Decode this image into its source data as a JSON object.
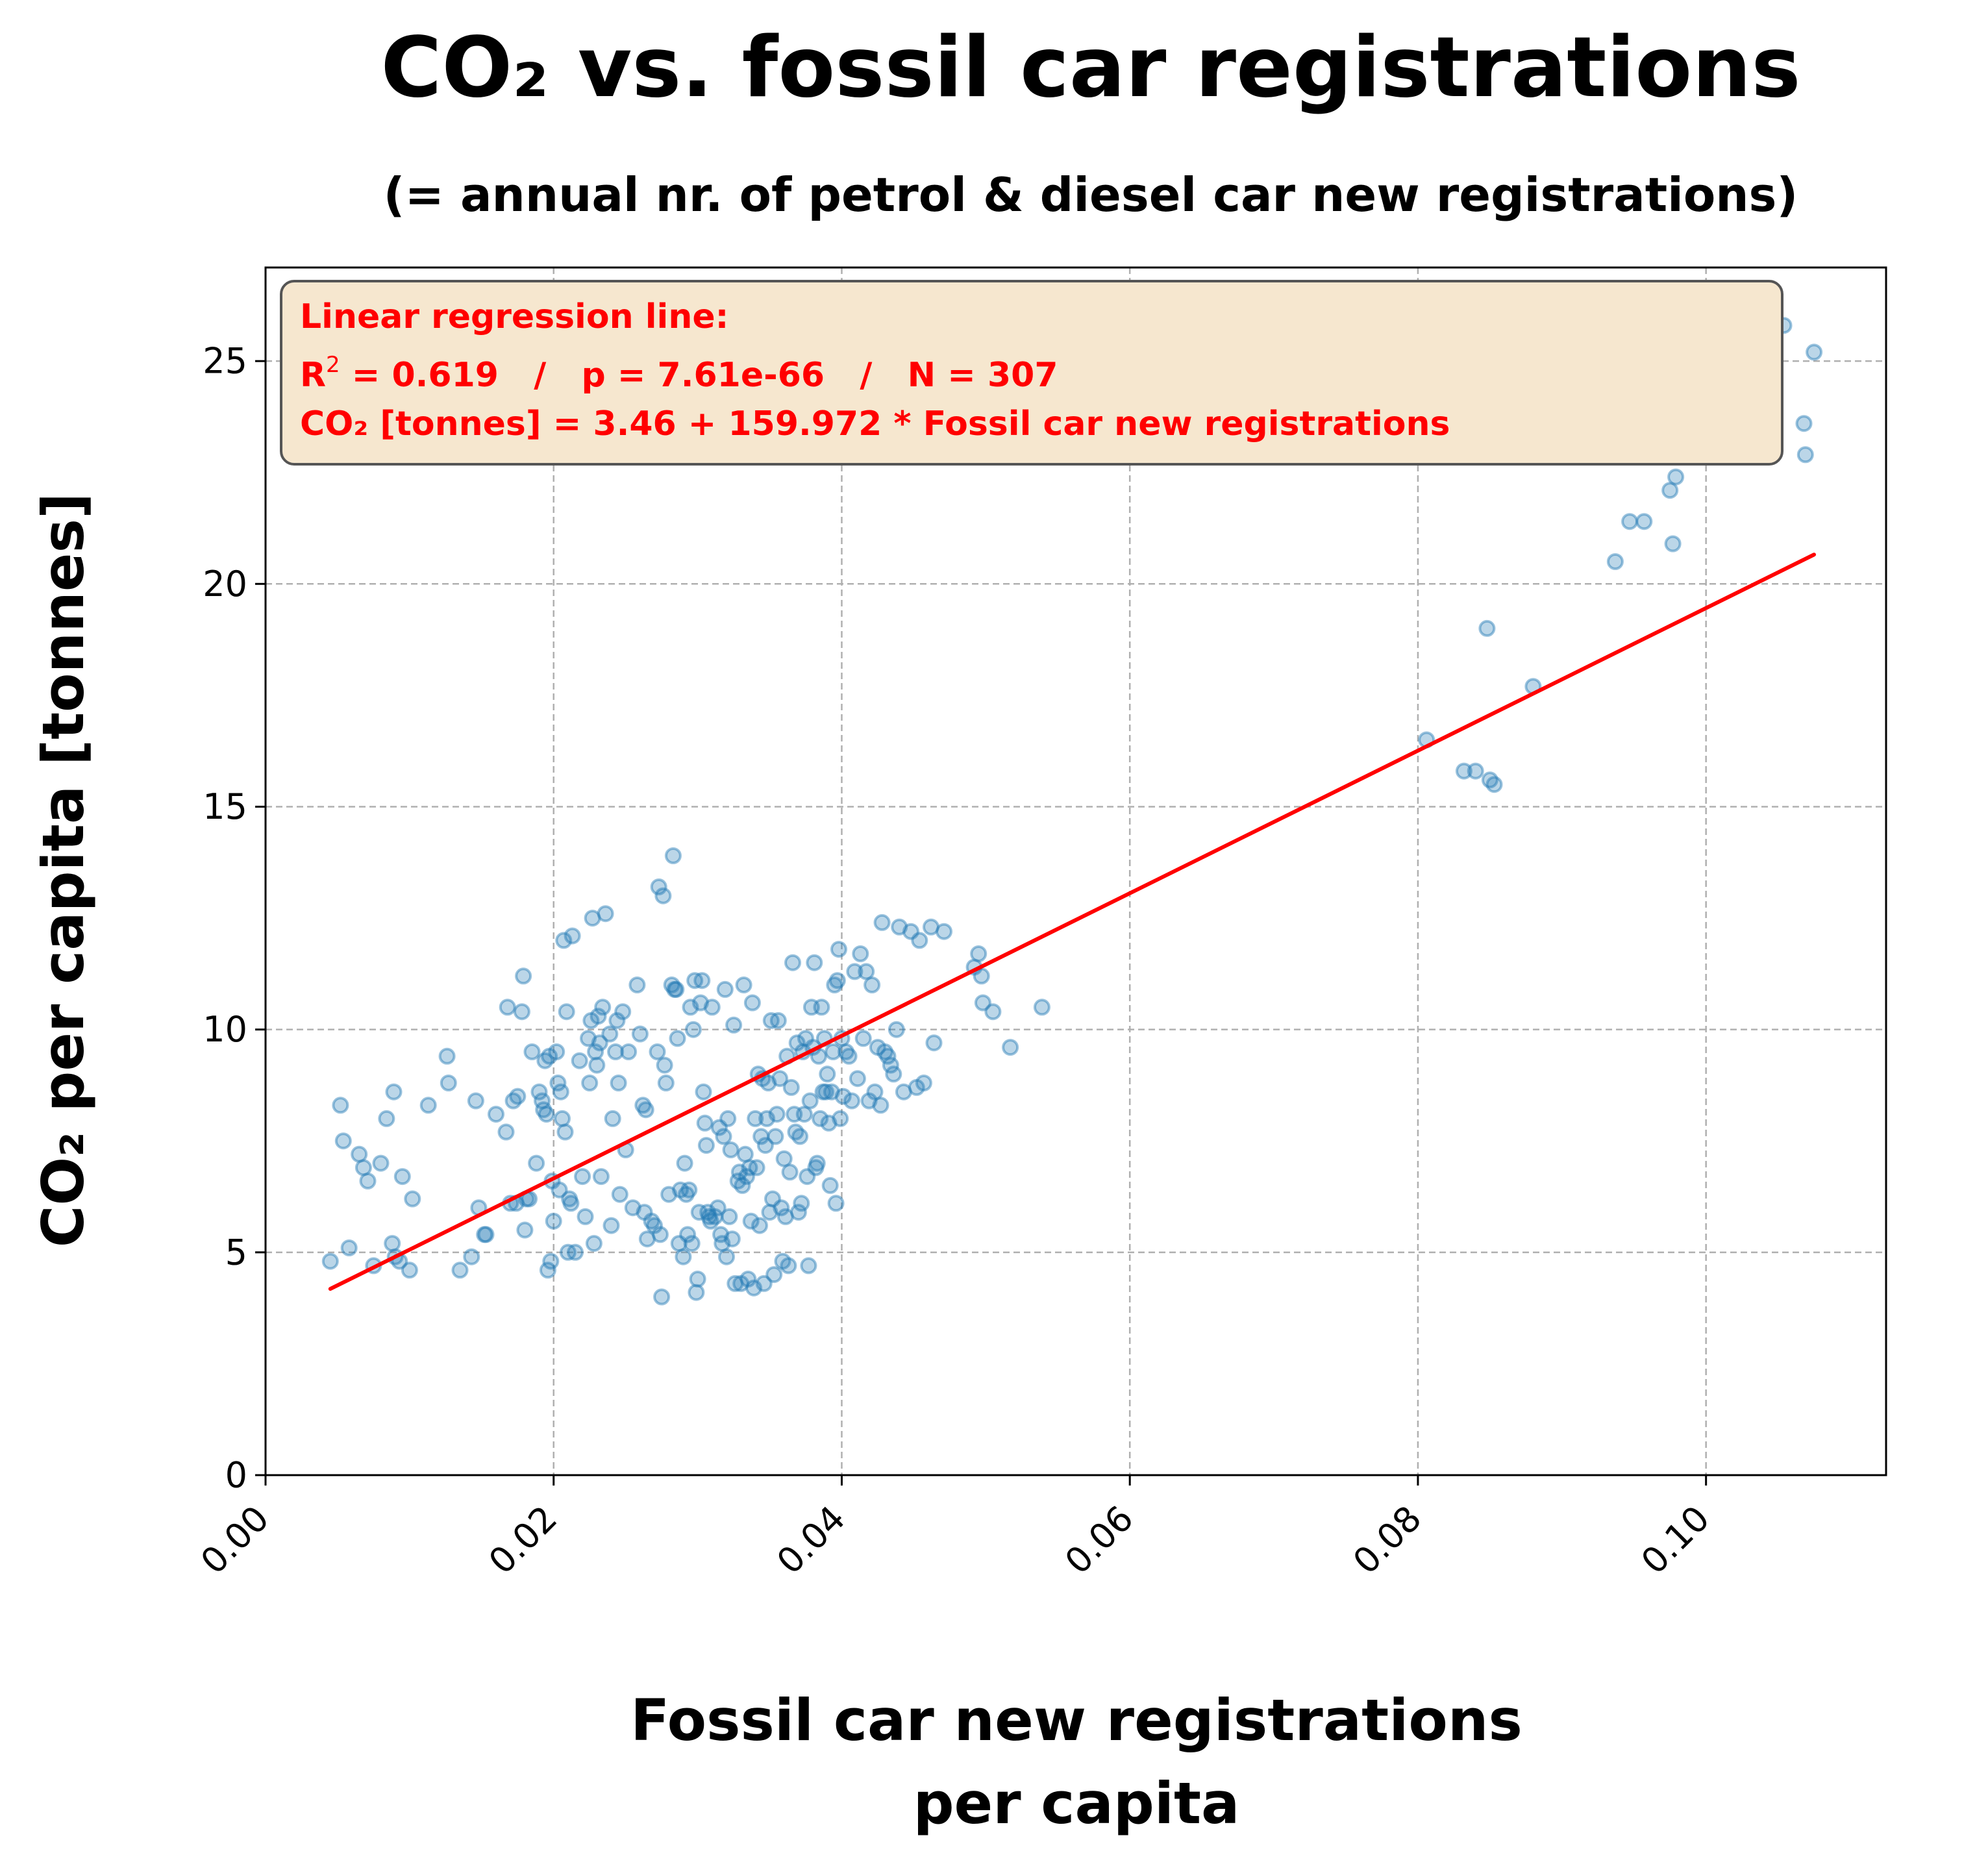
{
  "colors": {
    "point_fill": "#1f77b4",
    "regression_line": "#ff0000",
    "annotation_box_fill": "#f6e7cf",
    "annotation_box_edge": "#555555",
    "grid": "#b0b0b0"
  },
  "chart_data": {
    "type": "scatter",
    "title": "CO₂ vs. fossil car registrations",
    "subtitle": "(= annual nr. of petrol & diesel car new registrations)",
    "xlabel_line1": "Fossil car new registrations",
    "xlabel_line2": "per capita",
    "ylabel": "CO₂ per capita [tonnes]",
    "xlim": [
      0.0,
      0.1125
    ],
    "ylim": [
      0,
      27.1
    ],
    "x_ticks": [
      0.0,
      0.02,
      0.04,
      0.06,
      0.08,
      0.1
    ],
    "x_tick_labels": [
      "0.00",
      "0.02",
      "0.04",
      "0.06",
      "0.08",
      "0.10"
    ],
    "y_ticks": [
      0,
      5,
      10,
      15,
      20,
      25
    ],
    "y_tick_labels": [
      "0",
      "5",
      "10",
      "15",
      "20",
      "25"
    ],
    "grid": true,
    "regression": {
      "intercept": 3.46,
      "slope": 159.972,
      "x_range": [
        0.0045,
        0.1075
      ]
    },
    "annotation": {
      "line1": "Linear regression line:",
      "line2_r": "R",
      "line2_sup": "2",
      "line2_rest": " = 0.619   /   p = 7.61e-66   /   N = 307",
      "line3": "CO₂ [tonnes] = 3.46 + 159.972 * Fossil car new registrations",
      "placement": "top-left"
    },
    "points": [
      [
        0.0045,
        4.8
      ],
      [
        0.0052,
        8.3
      ],
      [
        0.0054,
        7.5
      ],
      [
        0.0058,
        5.1
      ],
      [
        0.0065,
        7.2
      ],
      [
        0.0068,
        6.9
      ],
      [
        0.0071,
        6.6
      ],
      [
        0.0075,
        4.7
      ],
      [
        0.008,
        7.0
      ],
      [
        0.0084,
        8.0
      ],
      [
        0.0088,
        5.2
      ],
      [
        0.0089,
        8.6
      ],
      [
        0.009,
        4.9
      ],
      [
        0.0093,
        4.8
      ],
      [
        0.0095,
        6.7
      ],
      [
        0.01,
        4.6
      ],
      [
        0.0102,
        6.2
      ],
      [
        0.0113,
        8.3
      ],
      [
        0.0126,
        9.4
      ],
      [
        0.0127,
        8.8
      ],
      [
        0.0135,
        4.6
      ],
      [
        0.0143,
        4.9
      ],
      [
        0.0146,
        8.4
      ],
      [
        0.0148,
        6.0
      ],
      [
        0.0152,
        5.4
      ],
      [
        0.0153,
        5.4
      ],
      [
        0.016,
        8.1
      ],
      [
        0.0167,
        7.7
      ],
      [
        0.0168,
        10.5
      ],
      [
        0.017,
        6.1
      ],
      [
        0.0172,
        8.4
      ],
      [
        0.0174,
        6.1
      ],
      [
        0.0175,
        8.5
      ],
      [
        0.0178,
        10.4
      ],
      [
        0.0179,
        11.2
      ],
      [
        0.018,
        5.5
      ],
      [
        0.0181,
        6.2
      ],
      [
        0.0183,
        6.2
      ],
      [
        0.0185,
        9.5
      ],
      [
        0.0188,
        7.0
      ],
      [
        0.019,
        8.6
      ],
      [
        0.0192,
        8.4
      ],
      [
        0.0193,
        8.2
      ],
      [
        0.0194,
        9.3
      ],
      [
        0.0195,
        8.1
      ],
      [
        0.0196,
        4.6
      ],
      [
        0.0197,
        9.4
      ],
      [
        0.0198,
        4.8
      ],
      [
        0.0199,
        6.6
      ],
      [
        0.02,
        5.7
      ],
      [
        0.0202,
        9.5
      ],
      [
        0.0203,
        8.8
      ],
      [
        0.0204,
        6.4
      ],
      [
        0.0205,
        8.6
      ],
      [
        0.0206,
        8.0
      ],
      [
        0.0207,
        12.0
      ],
      [
        0.0208,
        7.7
      ],
      [
        0.0209,
        10.4
      ],
      [
        0.021,
        5.0
      ],
      [
        0.0211,
        6.2
      ],
      [
        0.0212,
        6.1
      ],
      [
        0.0213,
        12.1
      ],
      [
        0.0215,
        5.0
      ],
      [
        0.0218,
        9.3
      ],
      [
        0.022,
        6.7
      ],
      [
        0.0222,
        5.8
      ],
      [
        0.0224,
        9.8
      ],
      [
        0.0225,
        8.8
      ],
      [
        0.0226,
        10.2
      ],
      [
        0.0227,
        12.5
      ],
      [
        0.0228,
        5.2
      ],
      [
        0.0229,
        9.5
      ],
      [
        0.023,
        9.2
      ],
      [
        0.0231,
        10.3
      ],
      [
        0.0232,
        9.7
      ],
      [
        0.0233,
        6.7
      ],
      [
        0.0234,
        10.5
      ],
      [
        0.0236,
        12.6
      ],
      [
        0.0239,
        9.9
      ],
      [
        0.024,
        5.6
      ],
      [
        0.0241,
        8.0
      ],
      [
        0.0243,
        9.5
      ],
      [
        0.0244,
        10.2
      ],
      [
        0.0245,
        8.8
      ],
      [
        0.0246,
        6.3
      ],
      [
        0.0248,
        10.4
      ],
      [
        0.025,
        7.3
      ],
      [
        0.0252,
        9.5
      ],
      [
        0.0255,
        6.0
      ],
      [
        0.0258,
        11.0
      ],
      [
        0.026,
        9.9
      ],
      [
        0.0262,
        8.3
      ],
      [
        0.0263,
        5.9
      ],
      [
        0.0264,
        8.2
      ],
      [
        0.0265,
        5.3
      ],
      [
        0.0268,
        5.7
      ],
      [
        0.027,
        5.6
      ],
      [
        0.0272,
        9.5
      ],
      [
        0.0273,
        13.2
      ],
      [
        0.0274,
        5.4
      ],
      [
        0.0275,
        4.0
      ],
      [
        0.0276,
        13.0
      ],
      [
        0.0277,
        9.2
      ],
      [
        0.0278,
        8.8
      ],
      [
        0.028,
        6.3
      ],
      [
        0.0282,
        11.0
      ],
      [
        0.0283,
        13.9
      ],
      [
        0.0284,
        10.9
      ],
      [
        0.0285,
        10.9
      ],
      [
        0.0286,
        9.8
      ],
      [
        0.0287,
        5.2
      ],
      [
        0.0288,
        6.4
      ],
      [
        0.029,
        4.9
      ],
      [
        0.0291,
        7.0
      ],
      [
        0.0292,
        6.3
      ],
      [
        0.0293,
        5.4
      ],
      [
        0.0294,
        6.4
      ],
      [
        0.0295,
        10.5
      ],
      [
        0.0296,
        5.2
      ],
      [
        0.0297,
        10.0
      ],
      [
        0.0298,
        11.1
      ],
      [
        0.0299,
        4.1
      ],
      [
        0.03,
        4.4
      ],
      [
        0.0301,
        5.9
      ],
      [
        0.0302,
        10.6
      ],
      [
        0.0303,
        11.1
      ],
      [
        0.0304,
        8.6
      ],
      [
        0.0305,
        7.9
      ],
      [
        0.0306,
        7.4
      ],
      [
        0.0307,
        5.9
      ],
      [
        0.0308,
        5.8
      ],
      [
        0.0309,
        5.7
      ],
      [
        0.031,
        10.5
      ],
      [
        0.0312,
        5.8
      ],
      [
        0.0314,
        6.0
      ],
      [
        0.0315,
        7.8
      ],
      [
        0.0316,
        5.4
      ],
      [
        0.0317,
        5.2
      ],
      [
        0.0318,
        7.6
      ],
      [
        0.0319,
        10.9
      ],
      [
        0.032,
        4.9
      ],
      [
        0.0321,
        8.0
      ],
      [
        0.0322,
        5.8
      ],
      [
        0.0323,
        7.3
      ],
      [
        0.0324,
        5.3
      ],
      [
        0.0325,
        10.1
      ],
      [
        0.0326,
        4.3
      ],
      [
        0.0328,
        6.6
      ],
      [
        0.0329,
        6.8
      ],
      [
        0.033,
        4.3
      ],
      [
        0.0331,
        6.5
      ],
      [
        0.0332,
        11.0
      ],
      [
        0.0333,
        7.2
      ],
      [
        0.0334,
        6.7
      ],
      [
        0.0335,
        4.4
      ],
      [
        0.0336,
        6.9
      ],
      [
        0.0337,
        5.7
      ],
      [
        0.0338,
        10.6
      ],
      [
        0.0339,
        4.2
      ],
      [
        0.034,
        8.0
      ],
      [
        0.0341,
        6.9
      ],
      [
        0.0342,
        9.0
      ],
      [
        0.0343,
        5.6
      ],
      [
        0.0344,
        7.6
      ],
      [
        0.0345,
        8.9
      ],
      [
        0.0346,
        4.3
      ],
      [
        0.0347,
        7.4
      ],
      [
        0.0348,
        8.0
      ],
      [
        0.0349,
        8.8
      ],
      [
        0.035,
        5.9
      ],
      [
        0.0351,
        10.2
      ],
      [
        0.0352,
        6.2
      ],
      [
        0.0353,
        4.5
      ],
      [
        0.0354,
        7.6
      ],
      [
        0.0355,
        8.1
      ],
      [
        0.0356,
        10.2
      ],
      [
        0.0357,
        8.9
      ],
      [
        0.0358,
        6.0
      ],
      [
        0.0359,
        4.8
      ],
      [
        0.036,
        7.1
      ],
      [
        0.0361,
        5.8
      ],
      [
        0.0362,
        9.4
      ],
      [
        0.0363,
        4.7
      ],
      [
        0.0364,
        6.8
      ],
      [
        0.0365,
        8.7
      ],
      [
        0.0366,
        11.5
      ],
      [
        0.0367,
        8.1
      ],
      [
        0.0368,
        7.7
      ],
      [
        0.0369,
        9.7
      ],
      [
        0.037,
        5.9
      ],
      [
        0.0371,
        7.6
      ],
      [
        0.0372,
        6.1
      ],
      [
        0.0373,
        9.5
      ],
      [
        0.0374,
        8.1
      ],
      [
        0.0375,
        9.8
      ],
      [
        0.0376,
        6.7
      ],
      [
        0.0377,
        4.7
      ],
      [
        0.0378,
        8.4
      ],
      [
        0.0379,
        10.5
      ],
      [
        0.038,
        9.6
      ],
      [
        0.0381,
        11.5
      ],
      [
        0.0382,
        6.9
      ],
      [
        0.0383,
        7.0
      ],
      [
        0.0384,
        9.4
      ],
      [
        0.0385,
        8.0
      ],
      [
        0.0386,
        10.5
      ],
      [
        0.0387,
        8.6
      ],
      [
        0.0388,
        9.8
      ],
      [
        0.0389,
        8.6
      ],
      [
        0.039,
        9.0
      ],
      [
        0.0391,
        7.9
      ],
      [
        0.0392,
        6.5
      ],
      [
        0.0393,
        8.6
      ],
      [
        0.0394,
        9.5
      ],
      [
        0.0395,
        11.0
      ],
      [
        0.0396,
        6.1
      ],
      [
        0.0397,
        11.1
      ],
      [
        0.0398,
        11.8
      ],
      [
        0.0399,
        8.0
      ],
      [
        0.04,
        9.8
      ],
      [
        0.0401,
        8.5
      ],
      [
        0.0403,
        9.5
      ],
      [
        0.0405,
        9.4
      ],
      [
        0.0407,
        8.4
      ],
      [
        0.0409,
        11.3
      ],
      [
        0.0411,
        8.9
      ],
      [
        0.0413,
        11.7
      ],
      [
        0.0415,
        9.8
      ],
      [
        0.0417,
        11.3
      ],
      [
        0.0419,
        8.4
      ],
      [
        0.0421,
        11.0
      ],
      [
        0.0423,
        8.6
      ],
      [
        0.0425,
        9.6
      ],
      [
        0.0427,
        8.3
      ],
      [
        0.0428,
        12.4
      ],
      [
        0.043,
        9.5
      ],
      [
        0.0432,
        9.4
      ],
      [
        0.0434,
        9.2
      ],
      [
        0.0436,
        9.0
      ],
      [
        0.0438,
        10.0
      ],
      [
        0.044,
        12.3
      ],
      [
        0.0443,
        8.6
      ],
      [
        0.0448,
        12.2
      ],
      [
        0.0452,
        8.7
      ],
      [
        0.0454,
        12.0
      ],
      [
        0.0457,
        8.8
      ],
      [
        0.0462,
        12.3
      ],
      [
        0.0464,
        9.7
      ],
      [
        0.0471,
        12.2
      ],
      [
        0.0492,
        11.4
      ],
      [
        0.0495,
        11.7
      ],
      [
        0.0497,
        11.2
      ],
      [
        0.0498,
        10.6
      ],
      [
        0.0505,
        10.4
      ],
      [
        0.0517,
        9.6
      ],
      [
        0.0539,
        10.5
      ],
      [
        0.0806,
        16.5
      ],
      [
        0.0832,
        15.8
      ],
      [
        0.084,
        15.8
      ],
      [
        0.0848,
        19.0
      ],
      [
        0.085,
        15.6
      ],
      [
        0.0853,
        15.5
      ],
      [
        0.088,
        17.7
      ],
      [
        0.0937,
        20.5
      ],
      [
        0.0947,
        21.4
      ],
      [
        0.0957,
        21.4
      ],
      [
        0.0968,
        23.2
      ],
      [
        0.0975,
        22.1
      ],
      [
        0.0977,
        20.9
      ],
      [
        0.0979,
        22.4
      ],
      [
        0.1043,
        26.0
      ],
      [
        0.1054,
        25.8
      ],
      [
        0.1068,
        23.6
      ],
      [
        0.1069,
        22.9
      ],
      [
        0.1075,
        25.2
      ]
    ]
  }
}
